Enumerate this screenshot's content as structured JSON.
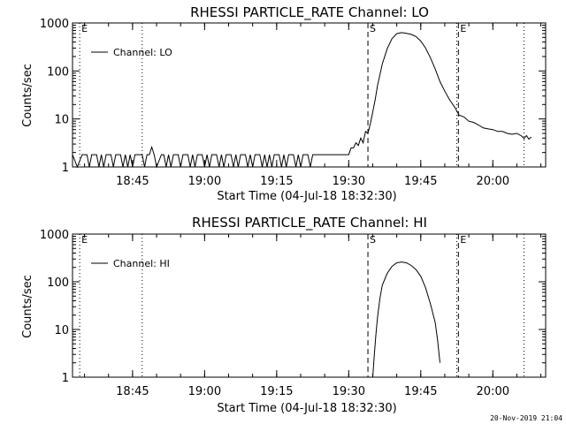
{
  "footer_timestamp": "20-Nov-2019 21:04",
  "chart_data": [
    {
      "type": "line",
      "title": "RHESSI PARTICLE_RATE Channel: LO",
      "xlabel": "Start Time (04-Jul-18 18:32:30)",
      "ylabel": "Counts/sec",
      "y_scale": "log",
      "ylim": [
        1,
        1000
      ],
      "xlim": [
        "18:32:30",
        "20:11:00"
      ],
      "x_ticks": [
        "18:45",
        "19:00",
        "19:15",
        "19:30",
        "19:45",
        "20:00"
      ],
      "y_ticks": [
        "1",
        "10",
        "100",
        "1000"
      ],
      "legend": {
        "position": "top-left",
        "entries": [
          "Channel: LO"
        ]
      },
      "markers": [
        {
          "x": "18:34:00",
          "label": "E",
          "style": "dotted"
        },
        {
          "x": "18:47:00",
          "label": "",
          "style": "dotted"
        },
        {
          "x": "19:34:00",
          "label": "S",
          "style": "dashed"
        },
        {
          "x": "19:52:30",
          "label": "",
          "style": "dotted"
        },
        {
          "x": "19:52:50",
          "label": "E",
          "style": "dashed"
        },
        {
          "x": "20:06:30",
          "label": "",
          "style": "dotted"
        }
      ],
      "series": [
        {
          "name": "Channel: LO",
          "points": [
            [
              "18:32:30",
              1.8
            ],
            [
              "18:33:30",
              1.0
            ],
            [
              "18:34:30",
              1.8
            ],
            [
              "18:35:30",
              1.8
            ],
            [
              "18:36:00",
              1.0
            ],
            [
              "18:36:30",
              1.8
            ],
            [
              "18:37:30",
              1.8
            ],
            [
              "18:38:00",
              1.0
            ],
            [
              "18:38:30",
              1.8
            ],
            [
              "18:39:00",
              1.0
            ],
            [
              "18:39:30",
              1.8
            ],
            [
              "18:40:30",
              1.8
            ],
            [
              "18:41:00",
              1.0
            ],
            [
              "18:41:30",
              1.8
            ],
            [
              "18:42:30",
              1.8
            ],
            [
              "18:43:00",
              1.0
            ],
            [
              "18:43:30",
              1.8
            ],
            [
              "18:44:00",
              1.0
            ],
            [
              "18:44:30",
              1.8
            ],
            [
              "18:45:00",
              1.0
            ],
            [
              "18:45:30",
              1.8
            ],
            [
              "18:46:30",
              1.8
            ],
            [
              "18:47:00",
              1.8
            ],
            [
              "18:47:30",
              1.0
            ],
            [
              "18:48:00",
              1.8
            ],
            [
              "18:48:30",
              1.8
            ],
            [
              "18:49:00",
              2.6
            ],
            [
              "18:49:30",
              1.8
            ],
            [
              "18:50:00",
              1.0
            ],
            [
              "18:51:00",
              1.8
            ],
            [
              "18:51:30",
              1.8
            ],
            [
              "18:52:00",
              1.0
            ],
            [
              "18:52:30",
              1.8
            ],
            [
              "18:53:00",
              1.0
            ],
            [
              "18:53:30",
              1.8
            ],
            [
              "18:54:30",
              1.8
            ],
            [
              "18:55:00",
              1.0
            ],
            [
              "18:55:30",
              1.8
            ],
            [
              "18:56:30",
              1.8
            ],
            [
              "18:57:00",
              1.0
            ],
            [
              "18:57:30",
              1.8
            ],
            [
              "18:58:00",
              1.0
            ],
            [
              "18:58:30",
              1.8
            ],
            [
              "18:59:30",
              1.8
            ],
            [
              "19:00:00",
              1.0
            ],
            [
              "19:00:30",
              1.8
            ],
            [
              "19:01:00",
              1.0
            ],
            [
              "19:01:30",
              1.8
            ],
            [
              "19:02:30",
              1.8
            ],
            [
              "19:03:00",
              1.0
            ],
            [
              "19:03:30",
              1.8
            ],
            [
              "19:04:00",
              1.0
            ],
            [
              "19:04:30",
              1.8
            ],
            [
              "19:05:30",
              1.8
            ],
            [
              "19:06:00",
              1.0
            ],
            [
              "19:06:30",
              1.8
            ],
            [
              "19:07:00",
              1.0
            ],
            [
              "19:07:30",
              1.8
            ],
            [
              "19:08:30",
              1.8
            ],
            [
              "19:09:00",
              1.0
            ],
            [
              "19:09:30",
              1.8
            ],
            [
              "19:10:00",
              1.0
            ],
            [
              "19:10:30",
              1.8
            ],
            [
              "19:11:30",
              1.8
            ],
            [
              "19:12:00",
              1.0
            ],
            [
              "19:12:30",
              1.8
            ],
            [
              "19:13:00",
              1.0
            ],
            [
              "19:13:30",
              1.8
            ],
            [
              "19:14:00",
              1.0
            ],
            [
              "19:14:30",
              1.8
            ],
            [
              "19:15:30",
              1.8
            ],
            [
              "19:16:00",
              1.0
            ],
            [
              "19:16:30",
              1.8
            ],
            [
              "19:17:00",
              1.0
            ],
            [
              "19:17:30",
              1.8
            ],
            [
              "19:18:30",
              1.8
            ],
            [
              "19:19:00",
              1.0
            ],
            [
              "19:19:30",
              1.8
            ],
            [
              "19:20:00",
              1.0
            ],
            [
              "19:20:30",
              1.8
            ],
            [
              "19:21:30",
              1.8
            ],
            [
              "19:22:00",
              1.0
            ],
            [
              "19:22:30",
              1.8
            ],
            [
              "19:23:00",
              1.8
            ],
            [
              "19:24:00",
              1.8
            ],
            [
              "19:25:00",
              1.8
            ],
            [
              "19:26:00",
              1.8
            ],
            [
              "19:27:00",
              1.8
            ],
            [
              "19:28:00",
              1.8
            ],
            [
              "19:29:00",
              1.8
            ],
            [
              "19:30:00",
              1.8
            ],
            [
              "19:30:30",
              2.5
            ],
            [
              "19:31:00",
              2.5
            ],
            [
              "19:31:30",
              3.2
            ],
            [
              "19:32:00",
              2.8
            ],
            [
              "19:32:30",
              4.0
            ],
            [
              "19:33:00",
              3.2
            ],
            [
              "19:33:30",
              5.5
            ],
            [
              "19:34:00",
              5.0
            ],
            [
              "19:34:30",
              8.0
            ],
            [
              "19:35:00",
              14
            ],
            [
              "19:35:30",
              25
            ],
            [
              "19:36:00",
              50
            ],
            [
              "19:37:00",
              140
            ],
            [
              "19:38:00",
              290
            ],
            [
              "19:39:00",
              470
            ],
            [
              "19:40:00",
              600
            ],
            [
              "19:41:00",
              630
            ],
            [
              "19:42:00",
              610
            ],
            [
              "19:43:00",
              580
            ],
            [
              "19:44:00",
              520
            ],
            [
              "19:45:00",
              420
            ],
            [
              "19:46:00",
              300
            ],
            [
              "19:47:00",
              190
            ],
            [
              "19:48:00",
              110
            ],
            [
              "19:49:00",
              60
            ],
            [
              "19:50:00",
              38
            ],
            [
              "19:51:00",
              25
            ],
            [
              "19:52:00",
              18
            ],
            [
              "19:53:00",
              12
            ],
            [
              "19:54:00",
              11
            ],
            [
              "19:55:00",
              9
            ],
            [
              "19:56:00",
              8.5
            ],
            [
              "19:57:00",
              7.5
            ],
            [
              "19:58:00",
              6.5
            ],
            [
              "19:59:00",
              6.2
            ],
            [
              "20:00:00",
              6.0
            ],
            [
              "20:01:00",
              5.5
            ],
            [
              "20:02:00",
              5.5
            ],
            [
              "20:03:00",
              5.0
            ],
            [
              "20:04:00",
              4.8
            ],
            [
              "20:05:00",
              5.0
            ],
            [
              "20:06:00",
              4.4
            ],
            [
              "20:06:30",
              3.9
            ],
            [
              "20:07:00",
              4.5
            ],
            [
              "20:07:30",
              3.8
            ],
            [
              "20:08:00",
              4.2
            ]
          ]
        }
      ]
    },
    {
      "type": "line",
      "title": "RHESSI PARTICLE_RATE Channel: HI",
      "xlabel": "Start Time (04-Jul-18 18:32:30)",
      "ylabel": "Counts/sec",
      "y_scale": "log",
      "ylim": [
        1,
        1000
      ],
      "xlim": [
        "18:32:30",
        "20:11:00"
      ],
      "x_ticks": [
        "18:45",
        "19:00",
        "19:15",
        "19:30",
        "19:45",
        "20:00"
      ],
      "y_ticks": [
        "1",
        "10",
        "100",
        "1000"
      ],
      "legend": {
        "position": "top-left",
        "entries": [
          "Channel: HI"
        ]
      },
      "markers": [
        {
          "x": "18:34:00",
          "label": "E",
          "style": "dotted"
        },
        {
          "x": "18:47:00",
          "label": "",
          "style": "dotted"
        },
        {
          "x": "19:34:00",
          "label": "S",
          "style": "dashed"
        },
        {
          "x": "19:52:30",
          "label": "",
          "style": "dotted"
        },
        {
          "x": "19:52:50",
          "label": "E",
          "style": "dashed"
        },
        {
          "x": "20:06:30",
          "label": "",
          "style": "dotted"
        }
      ],
      "series": [
        {
          "name": "Channel: HI",
          "points": [
            [
              "19:35:00",
              1.0
            ],
            [
              "19:35:20",
              3
            ],
            [
              "19:35:40",
              8
            ],
            [
              "19:36:00",
              18
            ],
            [
              "19:36:30",
              45
            ],
            [
              "19:37:00",
              85
            ],
            [
              "19:38:00",
              150
            ],
            [
              "19:39:00",
              210
            ],
            [
              "19:40:00",
              250
            ],
            [
              "19:41:00",
              260
            ],
            [
              "19:42:00",
              250
            ],
            [
              "19:43:00",
              220
            ],
            [
              "19:44:00",
              180
            ],
            [
              "19:45:00",
              130
            ],
            [
              "19:46:00",
              75
            ],
            [
              "19:47:00",
              35
            ],
            [
              "19:48:00",
              14
            ],
            [
              "19:48:30",
              6
            ],
            [
              "19:49:00",
              2
            ]
          ]
        }
      ]
    }
  ]
}
